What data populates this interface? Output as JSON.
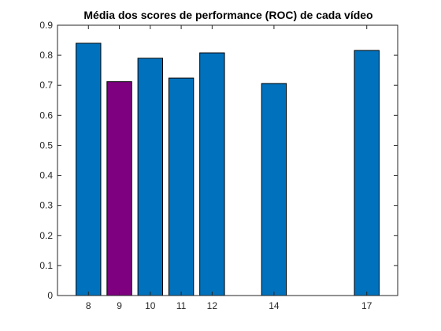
{
  "chart_data": {
    "type": "bar",
    "title": "Média dos scores de performance (ROC) de cada vídeo",
    "xlabel": "",
    "ylabel": "",
    "x": [
      8,
      9,
      10,
      11,
      12,
      14,
      17
    ],
    "values": [
      0.84,
      0.712,
      0.79,
      0.724,
      0.808,
      0.706,
      0.816
    ],
    "bar_colors": [
      "#0072BD",
      "#7E0080",
      "#0072BD",
      "#0072BD",
      "#0072BD",
      "#0072BD",
      "#0072BD"
    ],
    "xlim": [
      7,
      18
    ],
    "ylim": [
      0,
      0.9
    ],
    "yticks": [
      0,
      0.1,
      0.2,
      0.3,
      0.4,
      0.5,
      0.6,
      0.7,
      0.8,
      0.9
    ],
    "ytick_labels": [
      "0",
      "0.1",
      "0.2",
      "0.3",
      "0.4",
      "0.5",
      "0.6",
      "0.7",
      "0.8",
      "0.9"
    ],
    "xtick_labels": [
      "8",
      "9",
      "10",
      "11",
      "12",
      "14",
      "17"
    ],
    "grid": false,
    "legend": "none"
  }
}
